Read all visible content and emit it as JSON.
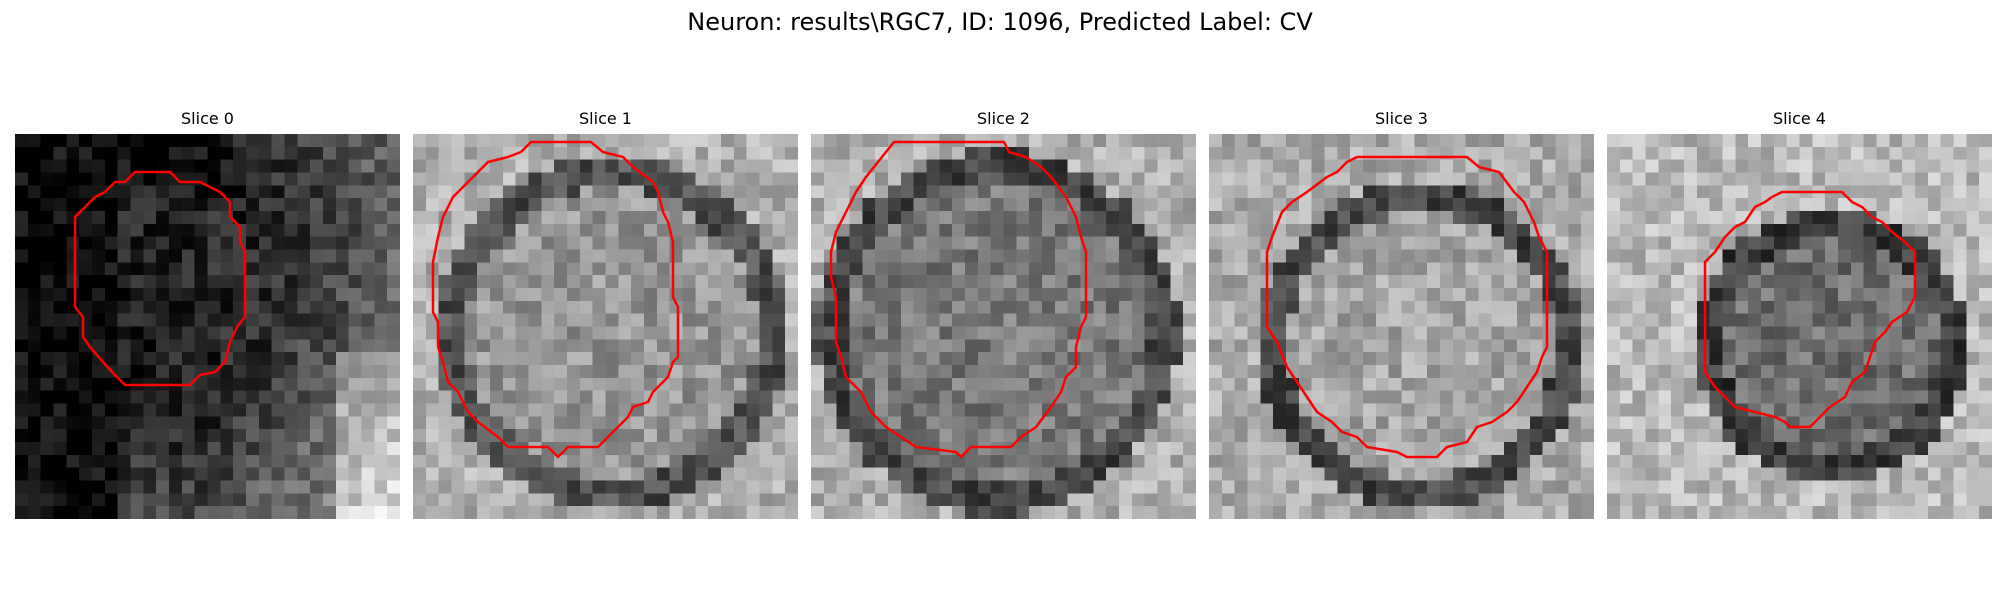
{
  "figure": {
    "title": "Neuron: results\\RGC7, ID: 1096, Predicted Label: CV"
  },
  "slices": [
    {
      "title": "Slice 0"
    },
    {
      "title": "Slice 1"
    },
    {
      "title": "Slice 2"
    },
    {
      "title": "Slice 3"
    },
    {
      "title": "Slice 4"
    }
  ],
  "colors": {
    "contour": "#ff0000",
    "background": "#ffffff",
    "colormap": "gray"
  }
}
